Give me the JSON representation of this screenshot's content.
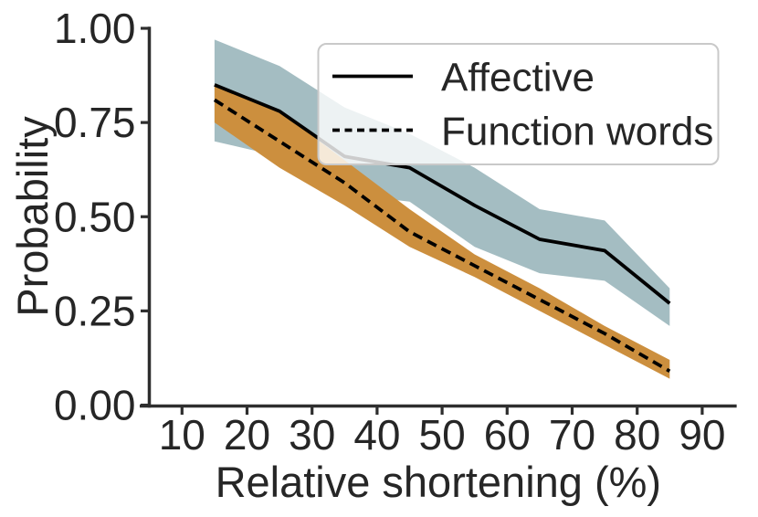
{
  "figure": {
    "background": "#ffffff",
    "text_color": "#262626",
    "spine_color": "#2e2e2e",
    "legend_border_color": "#c9c9c9",
    "legend_fill": "#ffffff",
    "legend_fill_opacity": 0.8
  },
  "chart_data": {
    "type": "line",
    "title": "",
    "xlabel": "Relative shortening (%)",
    "ylabel": "Probability",
    "xlim": [
      3.5,
      95.3
    ],
    "ylim": [
      0.0,
      1.0
    ],
    "x_ticks": [
      10,
      20,
      30,
      40,
      50,
      60,
      70,
      80,
      90
    ],
    "y_ticks": [
      0.0,
      0.25,
      0.5,
      0.75,
      1.0
    ],
    "y_tick_labels": [
      "0.00",
      "0.25",
      "0.50",
      "0.75",
      "1.00"
    ],
    "grid": false,
    "legend_position": "upper right",
    "x": [
      15,
      25,
      35,
      45,
      55,
      65,
      75,
      85
    ],
    "series": [
      {
        "name": "Affective",
        "line_style": "solid",
        "line_color": "#000000",
        "band_color": "#a4bdc2",
        "values": [
          0.85,
          0.78,
          0.66,
          0.63,
          0.53,
          0.44,
          0.41,
          0.27
        ],
        "band_upper": [
          0.97,
          0.9,
          0.79,
          0.72,
          0.63,
          0.52,
          0.49,
          0.31
        ],
        "band_lower": [
          0.7,
          0.66,
          0.56,
          0.54,
          0.42,
          0.35,
          0.33,
          0.21
        ]
      },
      {
        "name": "Function words",
        "line_style": "dashed",
        "line_color": "#000000",
        "band_color": "#cc8f3e",
        "values": [
          0.81,
          0.7,
          0.59,
          0.46,
          0.37,
          0.28,
          0.19,
          0.09
        ],
        "band_upper": [
          0.85,
          0.78,
          0.65,
          0.52,
          0.4,
          0.31,
          0.21,
          0.12
        ],
        "band_lower": [
          0.75,
          0.63,
          0.53,
          0.42,
          0.34,
          0.25,
          0.16,
          0.07
        ]
      }
    ]
  },
  "legend": {
    "entries": [
      "Affective",
      "Function words"
    ]
  }
}
